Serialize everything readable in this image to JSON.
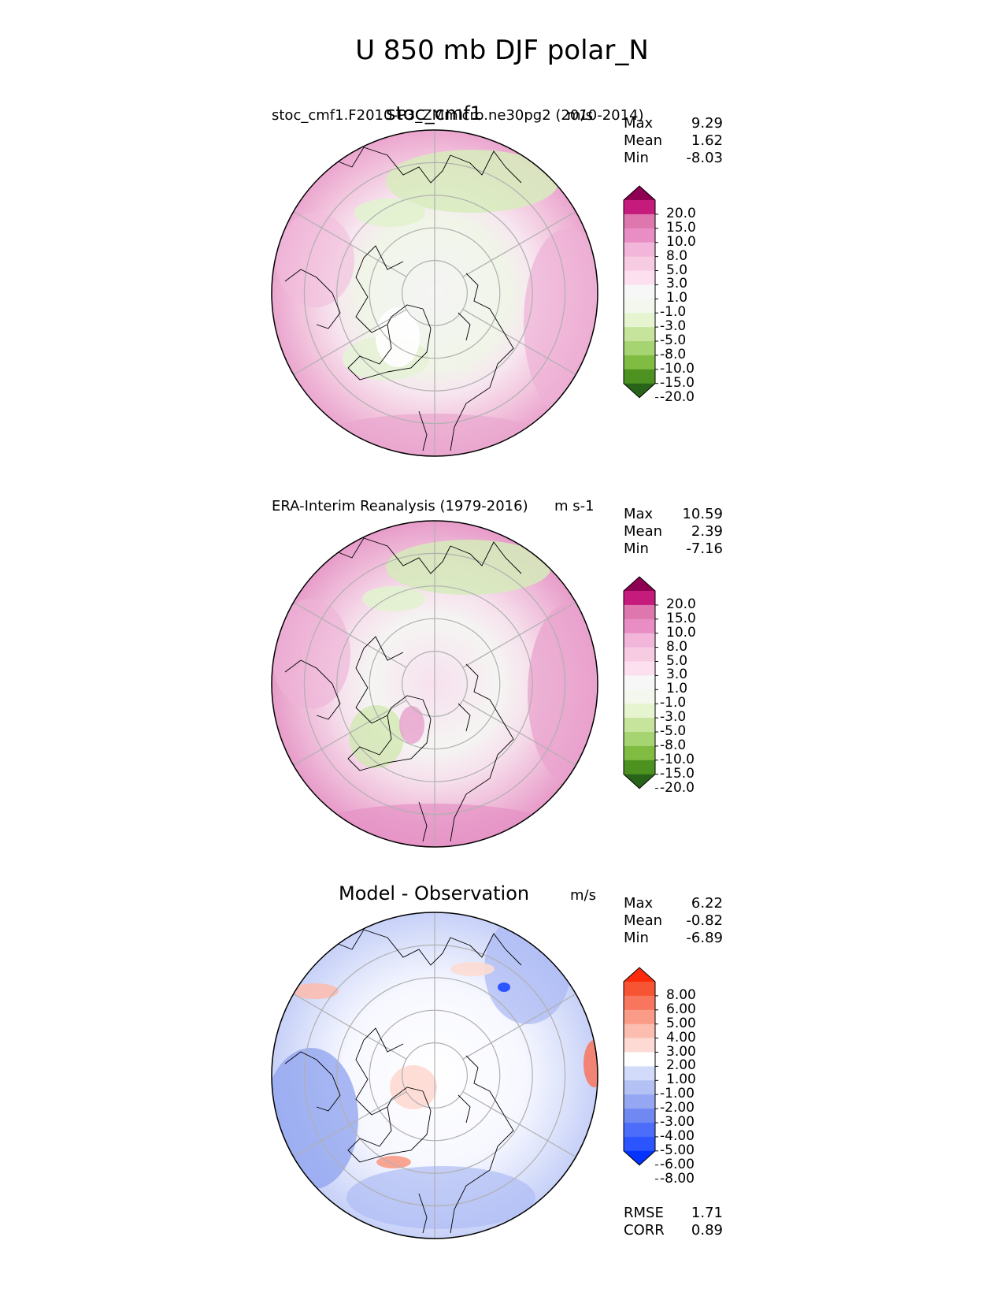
{
  "figure_title": "U 850 mb DJF polar_N",
  "colors": {
    "pink_green_scale": [
      "#276419",
      "#4d9221",
      "#7fbc41",
      "#a6d472",
      "#c6e49b",
      "#e6f5d0",
      "#f3f7ee",
      "#f7f7f7",
      "#fde0ef",
      "#f7cbe2",
      "#f1b6da",
      "#e98ec4",
      "#de77ae",
      "#c51b7d",
      "#8e0152"
    ],
    "blue_red_scale": [
      "#0433ff",
      "#2d55ff",
      "#4c6dfa",
      "#7088f2",
      "#95a7f2",
      "#b3c1f5",
      "#d2dbfa",
      "#ffffff",
      "#fddbd4",
      "#fbbdb0",
      "#fa9b87",
      "#f8765e",
      "#f65433",
      "#fb2b0b"
    ],
    "gridline": "#b0b0b0",
    "coastline": "#000000"
  },
  "chart_data": [
    {
      "type": "heatmap",
      "projection": "north-polar-stereographic",
      "subtitle_left": "stoc_cmf1.F2010-P3_ZMmicro.ne30pg2 (2010-2014)",
      "subtitle_center": "stoc_cmf1",
      "units": "m/s",
      "stats": {
        "max_label": "Max",
        "max": "9.29",
        "mean_label": "Mean",
        "mean": "1.62",
        "min_label": "Min",
        "min": "-8.03"
      },
      "colorbar_levels": [
        "20.0",
        "15.0",
        "10.0",
        "8.0",
        "5.0",
        "3.0",
        "1.0",
        "-1.0",
        "-3.0",
        "-5.0",
        "-8.0",
        "-10.0",
        "-15.0",
        "-20.0"
      ],
      "colorbar_extend": "both"
    },
    {
      "type": "heatmap",
      "projection": "north-polar-stereographic",
      "subtitle_left": "ERA-Interim Reanalysis (1979-2016)",
      "units": "m s-1",
      "stats": {
        "max_label": "Max",
        "max": "10.59",
        "mean_label": "Mean",
        "mean": "2.39",
        "min_label": "Min",
        "min": "-7.16"
      },
      "colorbar_levels": [
        "20.0",
        "15.0",
        "10.0",
        "8.0",
        "5.0",
        "3.0",
        "1.0",
        "-1.0",
        "-3.0",
        "-5.0",
        "-8.0",
        "-10.0",
        "-15.0",
        "-20.0"
      ],
      "colorbar_extend": "both"
    },
    {
      "type": "heatmap",
      "projection": "north-polar-stereographic",
      "title": "Model - Observation",
      "units": "m/s",
      "stats": {
        "max_label": "Max",
        "max": "6.22",
        "mean_label": "Mean",
        "mean": "-0.82",
        "min_label": "Min",
        "min": "-6.89"
      },
      "colorbar_levels": [
        "8.00",
        "6.00",
        "5.00",
        "4.00",
        "3.00",
        "2.00",
        "1.00",
        "-1.00",
        "-2.00",
        "-3.00",
        "-4.00",
        "-5.00",
        "-6.00",
        "-8.00"
      ],
      "colorbar_extend": "both",
      "error_stats": {
        "rmse_label": "RMSE",
        "rmse": "1.71",
        "corr_label": "CORR",
        "corr": "0.89"
      }
    }
  ]
}
